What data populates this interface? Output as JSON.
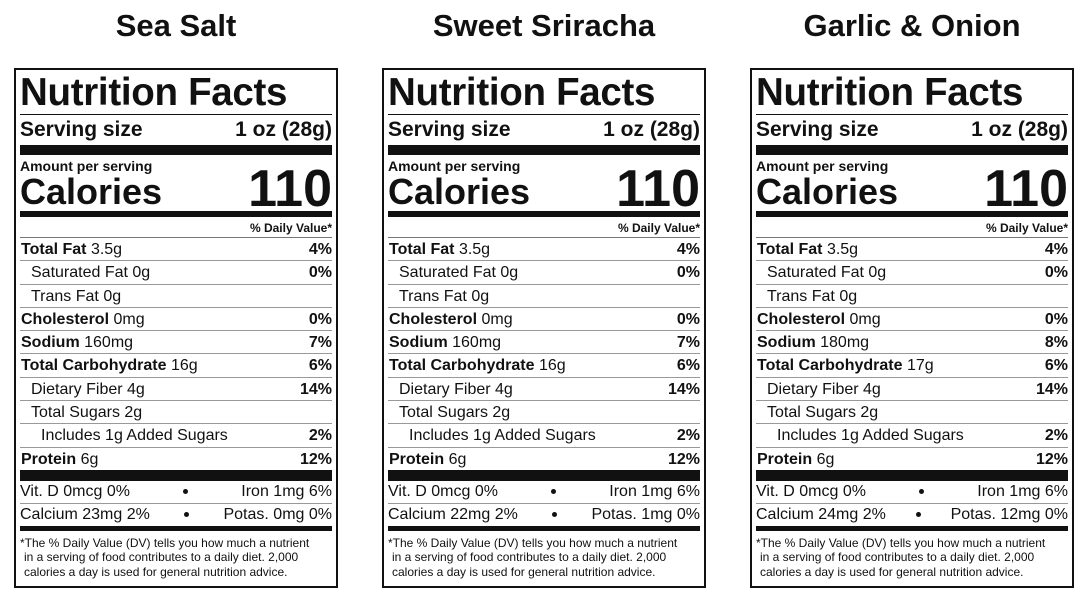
{
  "panels": [
    {
      "flavor": "Sea Salt",
      "label": {
        "title": "Nutrition Facts",
        "serving_label": "Serving size",
        "serving_size": "1 oz (28g)",
        "amount_per_serving": "Amount per serving",
        "calories_label": "Calories",
        "calories": "110",
        "dv_header": "% Daily Value*",
        "nutrients": [
          {
            "name": "Total Fat",
            "amount": "3.5g",
            "dv": "4%",
            "level": 0
          },
          {
            "name": "Saturated Fat 0g",
            "dv": "0%",
            "level": 1
          },
          {
            "name": "Trans Fat 0g",
            "level": 1
          },
          {
            "name": "Cholesterol",
            "amount": "0mg",
            "dv": "0%",
            "level": 0
          },
          {
            "name": "Sodium",
            "amount": "160mg",
            "dv": "7%",
            "level": 0
          },
          {
            "name": "Total Carbohydrate",
            "amount": "16g",
            "dv": "6%",
            "level": 0
          },
          {
            "name": "Dietary Fiber 4g",
            "dv": "14%",
            "level": 1
          },
          {
            "name": "Total Sugars 2g",
            "level": 1
          },
          {
            "name": "Includes 1g Added Sugars",
            "dv": "2%",
            "level": 2
          },
          {
            "name": "Protein",
            "amount": "6g",
            "dv": "12%",
            "level": 0
          }
        ],
        "minerals": [
          {
            "left": "Vit. D 0mcg 0%",
            "right": "Iron 1mg 6%"
          },
          {
            "left": "Calcium 23mg 2%",
            "right": "Potas. 0mg 0%"
          }
        ],
        "footnote": [
          "*The % Daily Value (DV) tells you how much a nutrient",
          "in a serving of food contributes to a daily diet. 2,000",
          "calories a day is used for general nutrition advice."
        ]
      }
    },
    {
      "flavor": "Sweet Sriracha",
      "label": {
        "title": "Nutrition Facts",
        "serving_label": "Serving size",
        "serving_size": "1 oz (28g)",
        "amount_per_serving": "Amount per serving",
        "calories_label": "Calories",
        "calories": "110",
        "dv_header": "% Daily Value*",
        "nutrients": [
          {
            "name": "Total Fat",
            "amount": "3.5g",
            "dv": "4%",
            "level": 0
          },
          {
            "name": "Saturated Fat 0g",
            "dv": "0%",
            "level": 1
          },
          {
            "name": "Trans Fat 0g",
            "level": 1
          },
          {
            "name": "Cholesterol",
            "amount": "0mg",
            "dv": "0%",
            "level": 0
          },
          {
            "name": "Sodium",
            "amount": "160mg",
            "dv": "7%",
            "level": 0
          },
          {
            "name": "Total Carbohydrate",
            "amount": "16g",
            "dv": "6%",
            "level": 0
          },
          {
            "name": "Dietary Fiber 4g",
            "dv": "14%",
            "level": 1
          },
          {
            "name": "Total Sugars 2g",
            "level": 1
          },
          {
            "name": "Includes 1g Added Sugars",
            "dv": "2%",
            "level": 2
          },
          {
            "name": "Protein",
            "amount": "6g",
            "dv": "12%",
            "level": 0
          }
        ],
        "minerals": [
          {
            "left": "Vit. D 0mcg 0%",
            "right": "Iron 1mg 6%"
          },
          {
            "left": "Calcium 22mg 2%",
            "right": "Potas. 1mg 0%"
          }
        ],
        "footnote": [
          "*The % Daily Value (DV) tells you how much a nutrient",
          "in a serving of food contributes to a daily diet. 2,000",
          "calories a day is used for general nutrition advice."
        ]
      }
    },
    {
      "flavor": "Garlic & Onion",
      "label": {
        "title": "Nutrition Facts",
        "serving_label": "Serving size",
        "serving_size": "1 oz (28g)",
        "amount_per_serving": "Amount per serving",
        "calories_label": "Calories",
        "calories": "110",
        "dv_header": "% Daily Value*",
        "nutrients": [
          {
            "name": "Total Fat",
            "amount": "3.5g",
            "dv": "4%",
            "level": 0
          },
          {
            "name": "Saturated Fat 0g",
            "dv": "0%",
            "level": 1
          },
          {
            "name": "Trans Fat 0g",
            "level": 1
          },
          {
            "name": "Cholesterol",
            "amount": "0mg",
            "dv": "0%",
            "level": 0
          },
          {
            "name": "Sodium",
            "amount": "180mg",
            "dv": "8%",
            "level": 0
          },
          {
            "name": "Total Carbohydrate",
            "amount": "17g",
            "dv": "6%",
            "level": 0
          },
          {
            "name": "Dietary Fiber 4g",
            "dv": "14%",
            "level": 1
          },
          {
            "name": "Total Sugars 2g",
            "level": 1
          },
          {
            "name": "Includes 1g Added Sugars",
            "dv": "2%",
            "level": 2
          },
          {
            "name": "Protein",
            "amount": "6g",
            "dv": "12%",
            "level": 0
          }
        ],
        "minerals": [
          {
            "left": "Vit. D 0mcg 0%",
            "right": "Iron 1mg 6%"
          },
          {
            "left": "Calcium 24mg 2%",
            "right": "Potas. 12mg 0%"
          }
        ],
        "footnote": [
          "*The % Daily Value (DV) tells you how much a nutrient",
          "in a serving of food contributes to a daily diet. 2,000",
          "calories a day is used for general nutrition advice."
        ]
      }
    }
  ]
}
